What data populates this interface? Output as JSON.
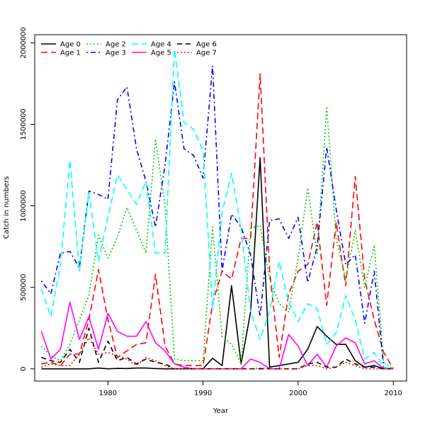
{
  "chart_data": {
    "type": "line",
    "title": "",
    "xlabel": "Year",
    "ylabel": "Catch in numbers",
    "xlim": [
      1972.3,
      2011.4
    ],
    "ylim": [
      -75000,
      2050000
    ],
    "xticks": [
      1980,
      1990,
      2000,
      2010
    ],
    "yticks": [
      0,
      500000,
      1000000,
      1500000,
      2000000
    ],
    "xtick_labels": [
      "1980",
      "1990",
      "2000",
      "2010"
    ],
    "ytick_labels": [
      "0",
      "500000",
      "1000000",
      "1500000",
      "2000000"
    ],
    "grid": false,
    "legend_position": "top-left",
    "x": [
      1973,
      1974,
      1975,
      1976,
      1977,
      1978,
      1979,
      1980,
      1981,
      1982,
      1983,
      1984,
      1985,
      1986,
      1987,
      1988,
      1989,
      1990,
      1991,
      1992,
      1993,
      1994,
      1995,
      1996,
      1997,
      1998,
      1999,
      2000,
      2001,
      2002,
      2003,
      2004,
      2005,
      2006,
      2007,
      2008,
      2009,
      2010
    ],
    "series": [
      {
        "name": "Age 0",
        "color": "#000000",
        "dash": "solid",
        "values": [
          0,
          0,
          0,
          0,
          0,
          0,
          5000,
          0,
          3000,
          2000,
          5000,
          5000,
          2000,
          0,
          0,
          0,
          0,
          0,
          65000,
          20000,
          510000,
          30000,
          350000,
          1295000,
          10000,
          20000,
          30000,
          40000,
          120000,
          260000,
          200000,
          150000,
          150000,
          50000,
          10000,
          20000,
          0,
          0
        ]
      },
      {
        "name": "Age 1",
        "color": "#ff0000",
        "dash": "longdash",
        "values": [
          30000,
          40000,
          20000,
          90000,
          90000,
          300000,
          610000,
          300000,
          70000,
          110000,
          150000,
          160000,
          580000,
          140000,
          30000,
          20000,
          20000,
          20000,
          400000,
          600000,
          550000,
          800000,
          800000,
          1810000,
          600000,
          70000,
          460000,
          600000,
          640000,
          900000,
          390000,
          900000,
          510000,
          1180000,
          550000,
          300000,
          100000,
          0
        ]
      },
      {
        "name": "Age 2",
        "color": "#00cc00",
        "dash": "dotted",
        "values": [
          140000,
          80000,
          50000,
          150000,
          300000,
          450000,
          820000,
          680000,
          810000,
          990000,
          850000,
          710000,
          1410000,
          1000000,
          60000,
          50000,
          50000,
          50000,
          870000,
          200000,
          150000,
          30000,
          860000,
          880000,
          550000,
          400000,
          350000,
          680000,
          1110000,
          700000,
          1610000,
          800000,
          550000,
          850000,
          500000,
          760000,
          40000,
          0
        ]
      },
      {
        "name": "Age 3",
        "color": "#0000ff",
        "dash": "dotdash",
        "values": [
          540000,
          460000,
          710000,
          720000,
          620000,
          1090000,
          1070000,
          1040000,
          1650000,
          1730000,
          1350000,
          1150000,
          870000,
          1250000,
          1760000,
          1350000,
          1310000,
          1170000,
          1860000,
          600000,
          950000,
          870000,
          700000,
          320000,
          910000,
          920000,
          800000,
          930000,
          530000,
          750000,
          1360000,
          980000,
          640000,
          700000,
          280000,
          600000,
          0,
          0
        ]
      },
      {
        "name": "Age 4",
        "color": "#00ffff",
        "dash": "longdash",
        "values": [
          490000,
          320000,
          640000,
          1280000,
          600000,
          1080000,
          660000,
          930000,
          1190000,
          1100000,
          1010000,
          1150000,
          710000,
          710000,
          1960000,
          1510000,
          1470000,
          1340000,
          370000,
          960000,
          1200000,
          860000,
          350000,
          180000,
          350000,
          660000,
          410000,
          290000,
          400000,
          370000,
          150000,
          220000,
          450000,
          300000,
          60000,
          100000,
          10000,
          0
        ]
      },
      {
        "name": "Age 5",
        "color": "#ff00ff",
        "dash": "solid",
        "values": [
          230000,
          60000,
          120000,
          410000,
          180000,
          320000,
          120000,
          340000,
          230000,
          200000,
          200000,
          290000,
          160000,
          110000,
          30000,
          10000,
          0,
          0,
          0,
          0,
          0,
          0,
          60000,
          40000,
          0,
          0,
          210000,
          140000,
          20000,
          90000,
          10000,
          140000,
          190000,
          160000,
          30000,
          50000,
          0,
          0
        ]
      },
      {
        "name": "Age 6",
        "color": "#000000",
        "dash": "dashed",
        "values": [
          70000,
          50000,
          40000,
          120000,
          40000,
          250000,
          40000,
          170000,
          50000,
          70000,
          30000,
          60000,
          40000,
          30000,
          0,
          0,
          0,
          0,
          0,
          0,
          0,
          0,
          0,
          0,
          0,
          0,
          0,
          0,
          30000,
          40000,
          10000,
          10000,
          60000,
          30000,
          10000,
          10000,
          0,
          0
        ]
      },
      {
        "name": "Age 7",
        "color": "#ff0000",
        "dash": "dotted",
        "values": [
          10000,
          30000,
          20000,
          20000,
          90000,
          190000,
          90000,
          100000,
          80000,
          60000,
          20000,
          70000,
          50000,
          20000,
          0,
          0,
          0,
          0,
          0,
          0,
          0,
          0,
          0,
          5000,
          0,
          0,
          0,
          0,
          20000,
          20000,
          0,
          10000,
          40000,
          20000,
          0,
          0,
          0,
          0
        ]
      }
    ]
  }
}
